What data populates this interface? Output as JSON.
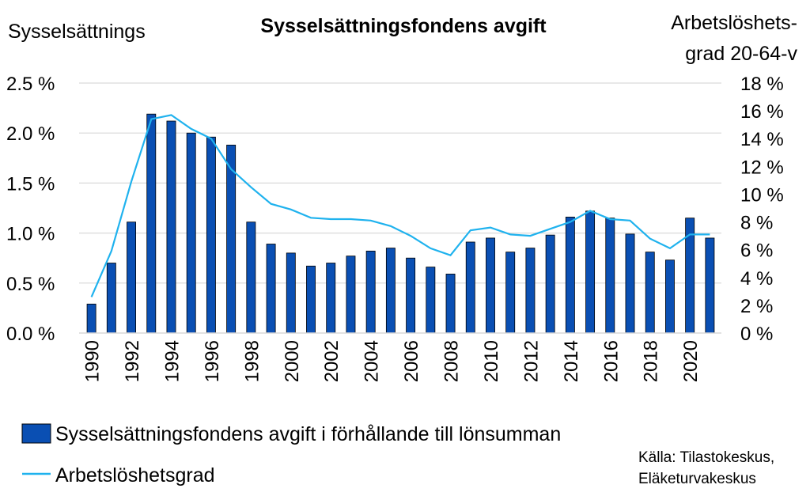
{
  "chart_data": {
    "type": "bar+line",
    "title": "Sysselsättningsfondens avgift",
    "y_left_label": "Sysselsättnings",
    "y_right_label": [
      "Arbetslöshets-",
      "grad 20-64-v"
    ],
    "x": [
      1990,
      1991,
      1992,
      1993,
      1994,
      1995,
      1996,
      1997,
      1998,
      1999,
      2000,
      2001,
      2002,
      2003,
      2004,
      2005,
      2006,
      2007,
      2008,
      2009,
      2010,
      2011,
      2012,
      2013,
      2014,
      2015,
      2016,
      2017,
      2018,
      2019,
      2020,
      2021
    ],
    "x_tick_labels": [
      "1990",
      "1992",
      "1994",
      "1996",
      "1998",
      "2000",
      "2002",
      "2004",
      "2006",
      "2008",
      "2010",
      "2012",
      "2014",
      "2016",
      "2018",
      "2020"
    ],
    "y_left_ticks": [
      "0.0 %",
      "0.5 %",
      "1.0 %",
      "1.5 %",
      "2.0 %",
      "2.5 %"
    ],
    "y_right_ticks": [
      "0 %",
      "2 %",
      "4 %",
      "6 %",
      "8 %",
      "10 %",
      "12 %",
      "14 %",
      "16 %",
      "18 %"
    ],
    "y_left_range": [
      0,
      2.5
    ],
    "y_right_range": [
      0,
      18
    ],
    "series": [
      {
        "name": "Sysselsättningsfondens avgift i förhållande till lönsumman",
        "type": "bar",
        "axis": "left",
        "color": "#0A4FB3",
        "values": [
          0.29,
          0.7,
          1.11,
          2.19,
          2.12,
          2.0,
          1.96,
          1.88,
          1.11,
          0.89,
          0.8,
          0.67,
          0.7,
          0.77,
          0.82,
          0.85,
          0.75,
          0.66,
          0.59,
          0.91,
          0.95,
          0.81,
          0.85,
          0.98,
          1.16,
          1.22,
          1.15,
          0.99,
          0.81,
          0.73,
          1.15,
          0.95
        ]
      },
      {
        "name": "Arbetslöshetsgrad",
        "type": "line",
        "axis": "right",
        "color": "#1FB2EE",
        "values": [
          2.6,
          5.9,
          10.9,
          15.4,
          15.7,
          14.7,
          14.0,
          11.8,
          10.5,
          9.3,
          8.9,
          8.3,
          8.2,
          8.2,
          8.1,
          7.7,
          7.0,
          6.1,
          5.6,
          7.4,
          7.6,
          7.1,
          7.0,
          7.5,
          8.0,
          8.8,
          8.2,
          8.1,
          6.8,
          6.1,
          7.1,
          7.1
        ]
      }
    ],
    "grid": "horizontal",
    "legend_position": "bottom-left",
    "source": [
      "Källa: Tilastokeskus,",
      "Eläketurvakeskus"
    ]
  }
}
